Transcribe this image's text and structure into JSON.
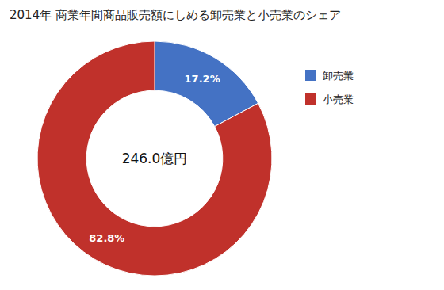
{
  "chart_data": {
    "type": "donut",
    "title": "2014年 商業年間商品販売額にしめる卸売業と小売業のシェア",
    "categories": [
      "卸売業",
      "小売業"
    ],
    "values": [
      17.2,
      82.8
    ],
    "value_labels": [
      "17.2%",
      "82.8%"
    ],
    "colors": [
      "#4472C4",
      "#C0312B"
    ],
    "annotations": [
      "246.0億円"
    ],
    "data_labels": true,
    "legend": "right"
  }
}
